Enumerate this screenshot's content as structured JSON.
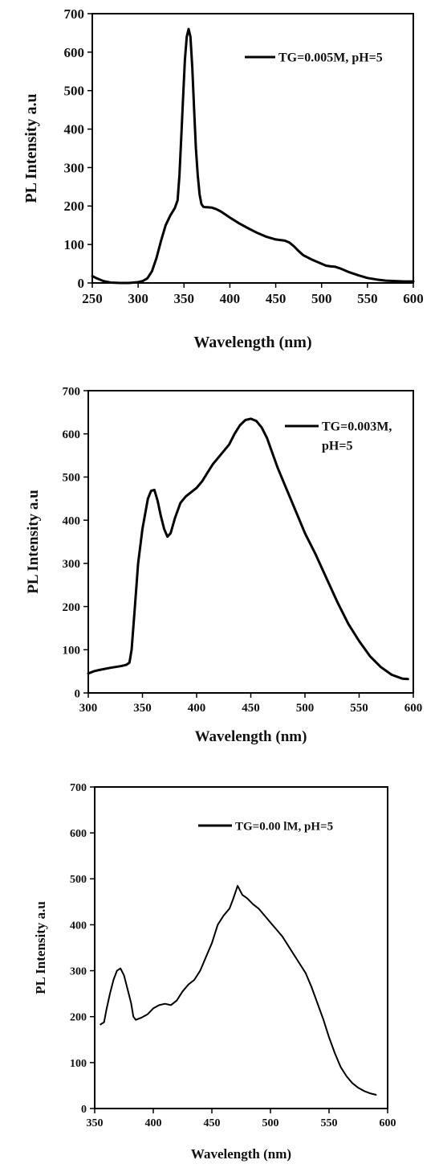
{
  "chart_data": [
    {
      "type": "line",
      "xlabel": "Wavelength (nm)",
      "ylabel": "PL Intensity a.u",
      "xlim": [
        250,
        600
      ],
      "ylim": [
        0,
        700
      ],
      "xticks": [
        "250",
        "300",
        "350",
        "400",
        "450",
        "500",
        "550",
        "600"
      ],
      "yticks": [
        "0",
        "100",
        "200",
        "300",
        "400",
        "500",
        "600",
        "700"
      ],
      "legend_position": "top-right",
      "grid": false,
      "series": [
        {
          "name": "TG=0.005M, pH=5",
          "x": [
            250,
            255,
            262,
            270,
            280,
            290,
            300,
            305,
            310,
            315,
            320,
            325,
            330,
            335,
            340,
            343,
            345,
            347,
            349,
            351,
            353,
            355,
            357,
            359,
            361,
            363,
            365,
            367,
            369,
            371,
            373,
            375,
            380,
            385,
            390,
            395,
            400,
            410,
            420,
            430,
            440,
            450,
            460,
            465,
            470,
            475,
            480,
            490,
            500,
            505,
            510,
            515,
            520,
            530,
            540,
            550,
            560,
            570,
            580,
            590,
            600
          ],
          "y": [
            18,
            12,
            5,
            1,
            0,
            0,
            2,
            5,
            12,
            30,
            65,
            110,
            150,
            175,
            195,
            215,
            280,
            380,
            480,
            580,
            640,
            660,
            640,
            560,
            450,
            350,
            280,
            230,
            205,
            198,
            197,
            197,
            196,
            192,
            186,
            178,
            170,
            155,
            142,
            130,
            120,
            113,
            110,
            105,
            95,
            83,
            72,
            60,
            50,
            45,
            43,
            42,
            38,
            28,
            20,
            13,
            9,
            6,
            5,
            4,
            4
          ]
        }
      ]
    },
    {
      "type": "line",
      "xlabel": "Wavelength (nm)",
      "ylabel": "PL Intensity a.u",
      "xlim": [
        300,
        600
      ],
      "ylim": [
        0,
        700
      ],
      "xticks": [
        "300",
        "350",
        "400",
        "450",
        "500",
        "550",
        "600"
      ],
      "yticks": [
        "0",
        "100",
        "200",
        "300",
        "400",
        "500",
        "600",
        "700"
      ],
      "legend_position": "top-right",
      "grid": false,
      "series": [
        {
          "name": "TG=0.003M, pH=5",
          "x": [
            300,
            305,
            310,
            320,
            330,
            335,
            338,
            340,
            343,
            346,
            350,
            355,
            358,
            361,
            364,
            367,
            370,
            373,
            376,
            380,
            385,
            390,
            395,
            400,
            405,
            410,
            415,
            420,
            430,
            435,
            440,
            445,
            450,
            455,
            460,
            465,
            470,
            475,
            480,
            490,
            500,
            510,
            520,
            530,
            540,
            550,
            560,
            570,
            580,
            590,
            595
          ],
          "y": [
            45,
            50,
            53,
            58,
            62,
            65,
            70,
            100,
            200,
            300,
            380,
            450,
            468,
            470,
            445,
            410,
            380,
            362,
            370,
            405,
            440,
            455,
            465,
            475,
            490,
            510,
            530,
            545,
            575,
            600,
            620,
            632,
            635,
            630,
            615,
            590,
            555,
            520,
            490,
            430,
            370,
            320,
            265,
            210,
            160,
            120,
            85,
            60,
            42,
            33,
            32
          ]
        }
      ]
    },
    {
      "type": "line",
      "xlabel": "Wavelength (nm)",
      "ylabel": "PL Intensity a.u",
      "xlim": [
        350,
        600
      ],
      "ylim": [
        0,
        700
      ],
      "xticks": [
        "350",
        "400",
        "450",
        "500",
        "550",
        "600"
      ],
      "yticks": [
        "0",
        "100",
        "200",
        "300",
        "400",
        "500",
        "600",
        "700"
      ],
      "legend_position": "top-right",
      "grid": false,
      "series": [
        {
          "name": "TG=0.00 lM, pH=5",
          "x": [
            355,
            358,
            360,
            363,
            366,
            369,
            372,
            375,
            378,
            381,
            383,
            385,
            390,
            395,
            400,
            405,
            410,
            415,
            420,
            425,
            430,
            435,
            440,
            445,
            450,
            455,
            460,
            465,
            468,
            470,
            472,
            474,
            476,
            480,
            485,
            490,
            495,
            500,
            505,
            510,
            515,
            520,
            525,
            530,
            535,
            540,
            545,
            550,
            555,
            560,
            565,
            570,
            575,
            580,
            585,
            590
          ],
          "y": [
            183,
            188,
            215,
            250,
            280,
            300,
            305,
            290,
            260,
            230,
            200,
            193,
            198,
            205,
            218,
            225,
            228,
            225,
            235,
            255,
            270,
            280,
            300,
            330,
            360,
            400,
            420,
            435,
            455,
            470,
            485,
            475,
            465,
            458,
            445,
            435,
            420,
            405,
            390,
            375,
            355,
            335,
            315,
            295,
            265,
            230,
            195,
            155,
            120,
            90,
            70,
            55,
            45,
            38,
            33,
            30
          ]
        }
      ]
    }
  ]
}
